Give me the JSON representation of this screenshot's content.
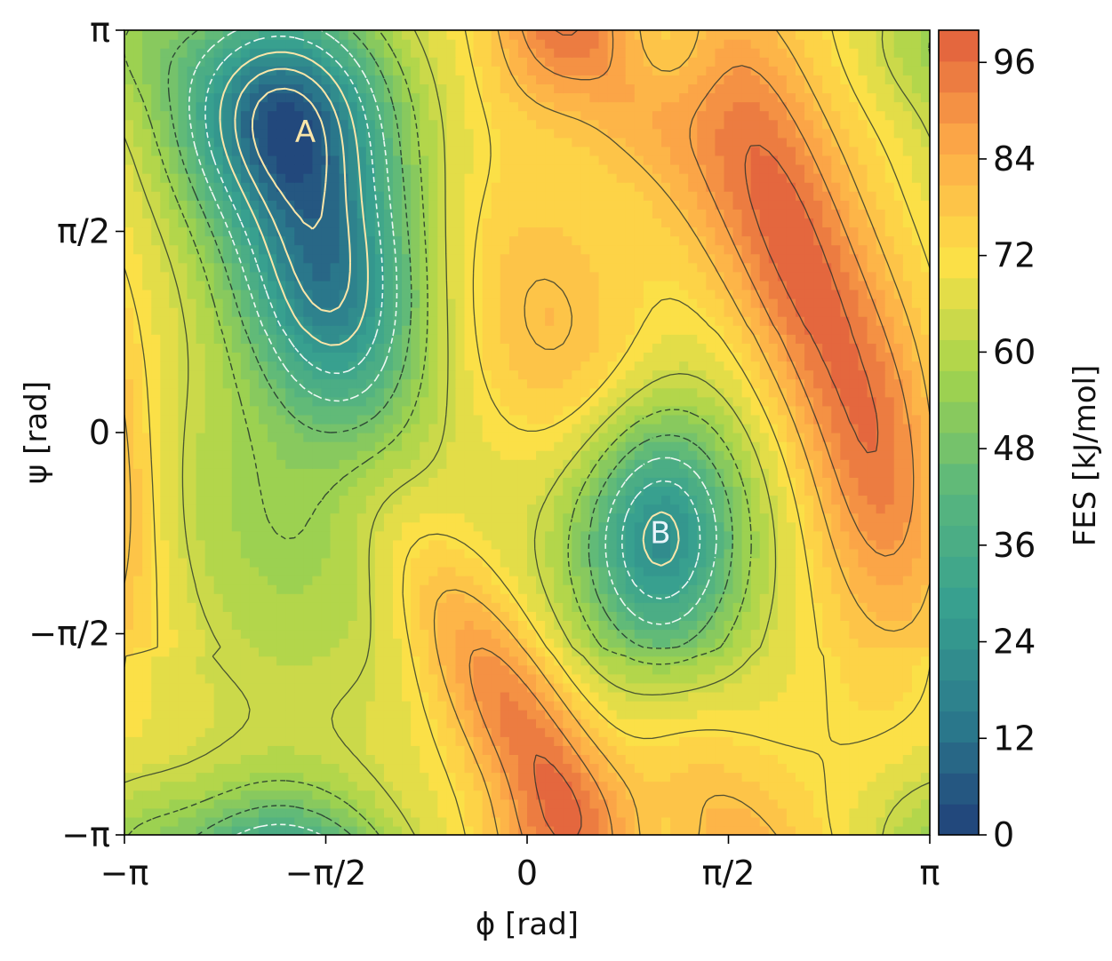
{
  "chart_data": {
    "type": "heatmap",
    "subtype": "filled-contour free energy surface",
    "xlabel": "ϕ [rad]",
    "ylabel": "ψ [rad]",
    "xlim": [
      -3.14159,
      3.14159
    ],
    "ylim": [
      -3.14159,
      3.14159
    ],
    "x_ticks": [
      {
        "value": -3.14159,
        "label": "−π"
      },
      {
        "value": -1.5708,
        "label": "−π/2"
      },
      {
        "value": 0,
        "label": "0"
      },
      {
        "value": 1.5708,
        "label": "π/2"
      },
      {
        "value": 3.14159,
        "label": "π"
      }
    ],
    "y_ticks": [
      {
        "value": -3.14159,
        "label": "−π"
      },
      {
        "value": -1.5708,
        "label": "−π/2"
      },
      {
        "value": 0,
        "label": "0"
      },
      {
        "value": 1.5708,
        "label": "π/2"
      },
      {
        "value": 3.14159,
        "label": "π"
      }
    ],
    "colorbar": {
      "label": "FES [kJ/mol]",
      "range": [
        0,
        100
      ],
      "ticks": [
        0,
        12,
        24,
        36,
        48,
        60,
        72,
        84,
        96
      ],
      "levels": 26,
      "colors": [
        "#21407a",
        "#2b7a8c",
        "#37a08f",
        "#5ab77d",
        "#a3d44c",
        "#fde047",
        "#fdaa48",
        "#e05c3c"
      ]
    },
    "grid": false,
    "legend": "none",
    "annotations": [
      {
        "label": "A",
        "x": -1.73,
        "y": 2.35,
        "color": "#fbe6a9"
      },
      {
        "label": "B",
        "x": 1.04,
        "y": -0.78,
        "color": "#e8f4fa"
      }
    ],
    "minima": [
      {
        "label": "A",
        "x": -1.73,
        "y": 2.35
      },
      {
        "label": "B",
        "x": 1.04,
        "y": -0.78
      }
    ]
  }
}
